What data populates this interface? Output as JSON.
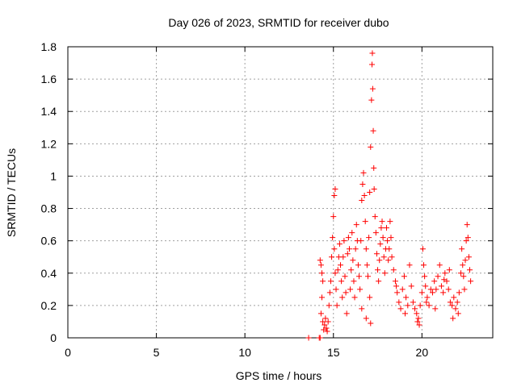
{
  "chart_data": {
    "type": "scatter",
    "title": "Day 026 of 2023, SRMTID for receiver dubo",
    "xlabel": "GPS time / hours",
    "ylabel": "SRMTID / TECUs",
    "xlim": [
      0,
      24
    ],
    "ylim": [
      0,
      1.8
    ],
    "xticks": [
      0,
      5,
      10,
      15,
      20
    ],
    "xtick_labels": [
      "0",
      "5",
      "10",
      "15",
      "20"
    ],
    "yticks": [
      0,
      0.2,
      0.4,
      0.6,
      0.8,
      1.0,
      1.2,
      1.4,
      1.6,
      1.8
    ],
    "ytick_labels": [
      "0",
      "0.2",
      "0.4",
      "0.6",
      "0.8",
      "1",
      "1.2",
      "1.4",
      "1.6",
      "1.8"
    ],
    "grid": true,
    "marker": "+",
    "color": "#ff0000",
    "series": [
      {
        "name": "SRMTID",
        "points": [
          [
            13.6,
            0.0
          ],
          [
            14.2,
            0.0
          ],
          [
            14.25,
            0.0
          ],
          [
            14.25,
            0.48
          ],
          [
            14.3,
            0.45
          ],
          [
            14.35,
            0.4
          ],
          [
            14.4,
            0.35
          ],
          [
            14.3,
            0.15
          ],
          [
            14.35,
            0.25
          ],
          [
            14.4,
            0.1
          ],
          [
            14.45,
            0.05
          ],
          [
            14.5,
            0.08
          ],
          [
            14.55,
            0.12
          ],
          [
            14.6,
            0.06
          ],
          [
            14.65,
            0.04
          ],
          [
            14.7,
            0.1
          ],
          [
            14.75,
            0.2
          ],
          [
            14.8,
            0.28
          ],
          [
            14.85,
            0.35
          ],
          [
            14.9,
            0.5
          ],
          [
            14.95,
            0.62
          ],
          [
            15.0,
            0.75
          ],
          [
            15.05,
            0.88
          ],
          [
            15.1,
            0.92
          ],
          [
            15.05,
            0.55
          ],
          [
            15.1,
            0.4
          ],
          [
            15.15,
            0.3
          ],
          [
            15.2,
            0.2
          ],
          [
            15.25,
            0.42
          ],
          [
            15.3,
            0.5
          ],
          [
            15.35,
            0.58
          ],
          [
            15.4,
            0.45
          ],
          [
            15.45,
            0.35
          ],
          [
            15.5,
            0.25
          ],
          [
            15.55,
            0.5
          ],
          [
            15.6,
            0.6
          ],
          [
            15.65,
            0.38
          ],
          [
            15.7,
            0.28
          ],
          [
            15.75,
            0.15
          ],
          [
            15.8,
            0.52
          ],
          [
            15.85,
            0.62
          ],
          [
            15.9,
            0.55
          ],
          [
            15.95,
            0.3
          ],
          [
            16.0,
            0.42
          ],
          [
            16.05,
            0.65
          ],
          [
            16.1,
            0.48
          ],
          [
            16.15,
            0.35
          ],
          [
            16.2,
            0.25
          ],
          [
            16.25,
            0.55
          ],
          [
            16.3,
            0.7
          ],
          [
            16.35,
            0.6
          ],
          [
            16.4,
            0.45
          ],
          [
            16.45,
            0.38
          ],
          [
            16.5,
            0.3
          ],
          [
            16.55,
            0.6
          ],
          [
            16.6,
            0.85
          ],
          [
            16.65,
            0.95
          ],
          [
            16.7,
            1.02
          ],
          [
            16.75,
            0.88
          ],
          [
            16.8,
            0.72
          ],
          [
            16.85,
            0.55
          ],
          [
            16.9,
            0.45
          ],
          [
            16.95,
            0.38
          ],
          [
            17.0,
            0.62
          ],
          [
            17.05,
            0.9
          ],
          [
            17.1,
            1.18
          ],
          [
            17.15,
            1.47
          ],
          [
            17.18,
            1.69
          ],
          [
            17.2,
            1.76
          ],
          [
            17.22,
            1.54
          ],
          [
            17.25,
            1.28
          ],
          [
            17.28,
            1.05
          ],
          [
            17.3,
            0.92
          ],
          [
            17.35,
            0.75
          ],
          [
            17.4,
            0.65
          ],
          [
            17.45,
            0.52
          ],
          [
            17.5,
            0.42
          ],
          [
            17.55,
            0.35
          ],
          [
            17.6,
            0.48
          ],
          [
            17.65,
            0.58
          ],
          [
            17.7,
            0.68
          ],
          [
            17.75,
            0.72
          ],
          [
            17.8,
            0.62
          ],
          [
            17.85,
            0.5
          ],
          [
            17.9,
            0.4
          ],
          [
            17.95,
            0.55
          ],
          [
            18.0,
            0.68
          ],
          [
            18.05,
            0.6
          ],
          [
            18.1,
            0.48
          ],
          [
            18.15,
            0.55
          ],
          [
            18.2,
            0.72
          ],
          [
            18.25,
            0.62
          ],
          [
            18.3,
            0.5
          ],
          [
            17.1,
            0.09
          ],
          [
            16.6,
            0.18
          ],
          [
            16.85,
            0.12
          ],
          [
            17.05,
            0.25
          ],
          [
            18.4,
            0.42
          ],
          [
            18.5,
            0.35
          ],
          [
            18.6,
            0.28
          ],
          [
            18.7,
            0.22
          ],
          [
            18.8,
            0.18
          ],
          [
            18.9,
            0.3
          ],
          [
            19.0,
            0.38
          ],
          [
            19.1,
            0.25
          ],
          [
            19.2,
            0.2
          ],
          [
            19.3,
            0.45
          ],
          [
            19.4,
            0.32
          ],
          [
            19.5,
            0.22
          ],
          [
            19.6,
            0.18
          ],
          [
            19.7,
            0.15
          ],
          [
            19.8,
            0.12
          ],
          [
            19.9,
            0.2
          ],
          [
            20.0,
            0.28
          ],
          [
            20.05,
            0.55
          ],
          [
            20.1,
            0.45
          ],
          [
            20.15,
            0.38
          ],
          [
            20.2,
            0.32
          ],
          [
            20.3,
            0.25
          ],
          [
            20.4,
            0.2
          ],
          [
            20.5,
            0.3
          ],
          [
            20.6,
            0.28
          ],
          [
            20.7,
            0.35
          ],
          [
            20.8,
            0.3
          ],
          [
            20.9,
            0.38
          ],
          [
            21.0,
            0.45
          ],
          [
            21.1,
            0.32
          ],
          [
            21.2,
            0.28
          ],
          [
            21.3,
            0.4
          ],
          [
            21.4,
            0.35
          ],
          [
            21.5,
            0.3
          ],
          [
            21.6,
            0.22
          ],
          [
            21.7,
            0.2
          ],
          [
            21.8,
            0.25
          ],
          [
            21.9,
            0.18
          ],
          [
            22.0,
            0.22
          ],
          [
            22.1,
            0.28
          ],
          [
            22.2,
            0.4
          ],
          [
            22.25,
            0.55
          ],
          [
            22.3,
            0.45
          ],
          [
            22.35,
            0.38
          ],
          [
            22.4,
            0.3
          ],
          [
            22.45,
            0.48
          ],
          [
            22.5,
            0.6
          ],
          [
            22.55,
            0.7
          ],
          [
            22.6,
            0.62
          ],
          [
            22.65,
            0.5
          ],
          [
            22.7,
            0.42
          ],
          [
            22.75,
            0.35
          ],
          [
            19.85,
            0.08
          ],
          [
            19.75,
            0.1
          ],
          [
            21.75,
            0.12
          ],
          [
            22.05,
            0.15
          ],
          [
            18.55,
            0.32
          ],
          [
            19.05,
            0.15
          ],
          [
            20.25,
            0.22
          ],
          [
            20.75,
            0.18
          ],
          [
            21.25,
            0.36
          ],
          [
            21.55,
            0.42
          ]
        ]
      }
    ]
  }
}
